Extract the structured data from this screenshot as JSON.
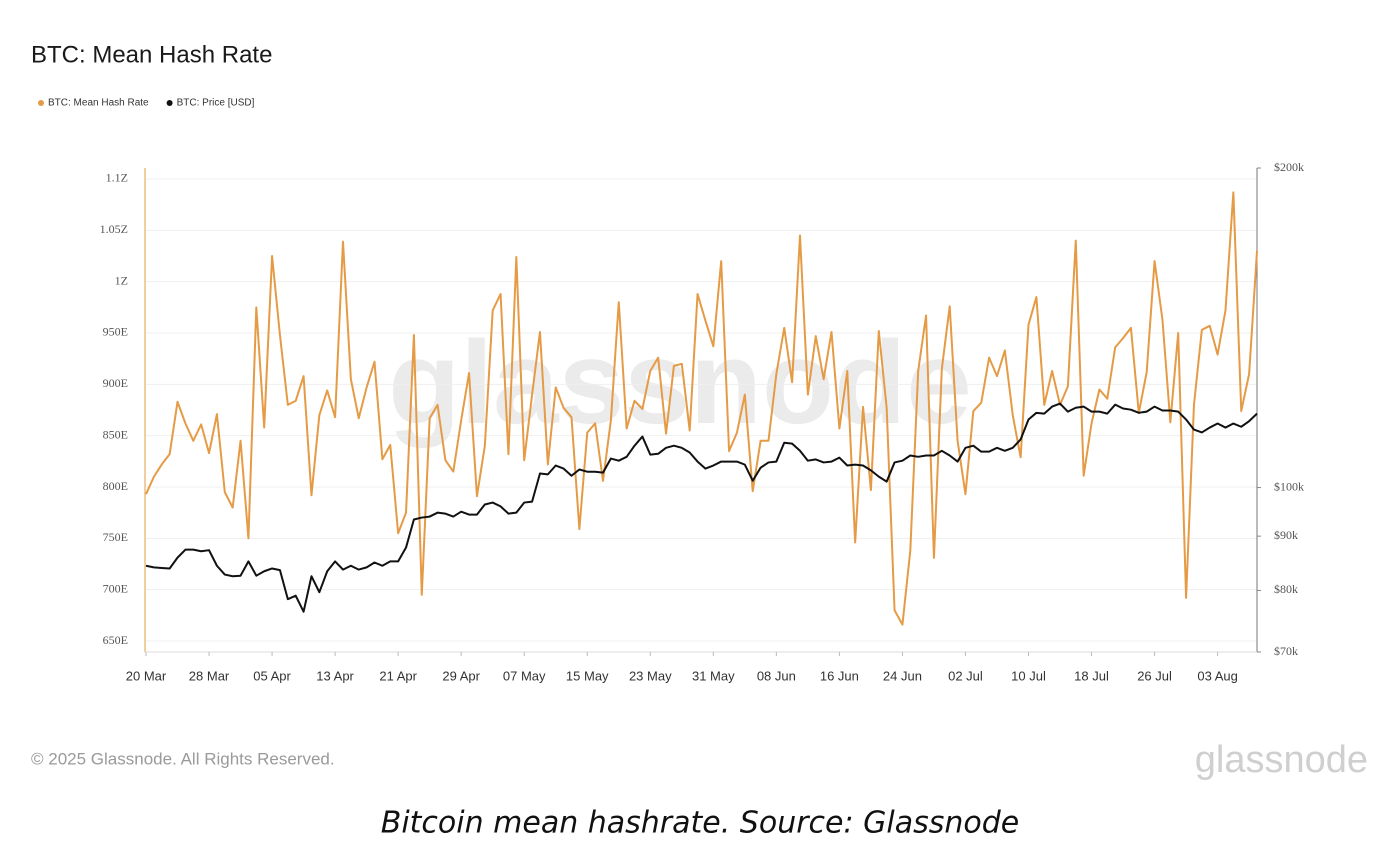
{
  "chart_data": {
    "type": "line",
    "title": "BTC: Mean Hash Rate",
    "categories": [
      "20 Mar",
      null,
      null,
      null,
      null,
      null,
      null,
      null,
      "28 Mar",
      null,
      null,
      null,
      null,
      null,
      null,
      null,
      "05 Apr",
      null,
      null,
      null,
      null,
      null,
      null,
      null,
      "13 Apr",
      null,
      null,
      null,
      null,
      null,
      null,
      null,
      "21 Apr",
      null,
      null,
      null,
      null,
      null,
      null,
      null,
      "29 Apr",
      null,
      null,
      null,
      null,
      null,
      null,
      null,
      "07 May",
      null,
      null,
      null,
      null,
      null,
      null,
      null,
      "15 May",
      null,
      null,
      null,
      null,
      null,
      null,
      null,
      "23 May",
      null,
      null,
      null,
      null,
      null,
      null,
      null,
      "31 May",
      null,
      null,
      null,
      null,
      null,
      null,
      null,
      "08 Jun",
      null,
      null,
      null,
      null,
      null,
      null,
      null,
      "16 Jun",
      null,
      null,
      null,
      null,
      null,
      null,
      null,
      "24 Jun",
      null,
      null,
      null,
      null,
      null,
      null,
      null,
      "02 Jul",
      null,
      null,
      null,
      null,
      null,
      null,
      null,
      "10 Jul",
      null,
      null,
      null,
      null,
      null,
      null,
      null,
      "18 Jul",
      null,
      null,
      null,
      null,
      null,
      null,
      null,
      "26 Jul",
      null,
      null,
      null,
      null,
      null,
      null,
      null,
      "03 Aug",
      null,
      null,
      null,
      null,
      null
    ],
    "series": [
      {
        "name": "BTC: Mean Hash Rate",
        "color": "#e59b45",
        "values": [
          793,
          810,
          822,
          832,
          883,
          862,
          845,
          861,
          833,
          871,
          795,
          780,
          845,
          750,
          975,
          858,
          1025,
          948,
          880,
          884,
          908,
          792,
          870,
          894,
          868,
          1039,
          905,
          867,
          897,
          922,
          827,
          841,
          755,
          775,
          948,
          695,
          867,
          880,
          826,
          815,
          865,
          911,
          791,
          840,
          972,
          988,
          832,
          1024,
          826,
          890,
          951,
          822,
          897,
          877,
          868,
          759,
          853,
          862,
          806,
          865,
          980,
          857,
          884,
          876,
          913,
          926,
          852,
          918,
          920,
          855,
          988,
          962,
          937,
          1020,
          835,
          853,
          890,
          796,
          845,
          845,
          910,
          955,
          902,
          1045,
          890,
          947,
          905,
          951,
          857,
          913,
          746,
          878,
          797,
          952,
          877,
          680,
          666,
          738,
          913,
          967,
          731,
          915,
          976,
          845,
          793,
          874,
          882,
          926,
          908,
          933,
          870,
          829,
          958,
          985,
          880,
          913,
          880,
          898,
          1040,
          811,
          862,
          895,
          886,
          936,
          945,
          955,
          872,
          912,
          1020,
          963,
          863,
          950,
          692,
          880,
          953,
          957,
          929,
          972,
          1087,
          874,
          910,
          1030
        ]
      },
      {
        "name": "BTC: Price [USD]",
        "color": "#111111",
        "axis": "y2",
        "values": [
          84400,
          84100,
          84000,
          83900,
          85900,
          87400,
          87400,
          87100,
          87300,
          84400,
          82800,
          82500,
          82600,
          85200,
          82600,
          83400,
          83900,
          83600,
          78500,
          79100,
          76400,
          82500,
          79700,
          83400,
          85200,
          83700,
          84400,
          83700,
          84100,
          85000,
          84400,
          85200,
          85200,
          87800,
          93300,
          93700,
          93900,
          94700,
          94500,
          93900,
          94900,
          94300,
          94300,
          96400,
          96800,
          96000,
          94500,
          94700,
          96800,
          97000,
          103100,
          102900,
          104900,
          104200,
          102600,
          104000,
          103500,
          103500,
          103300,
          106500,
          106000,
          106900,
          109500,
          111700,
          107400,
          107600,
          109000,
          109500,
          109000,
          107900,
          105800,
          104200,
          104900,
          105800,
          105800,
          105800,
          105100,
          101500,
          104400,
          105600,
          105800,
          110200,
          110000,
          108300,
          106000,
          106300,
          105600,
          105800,
          106700,
          104900,
          105100,
          104900,
          103800,
          102400,
          101300,
          105600,
          106000,
          107200,
          106900,
          107200,
          107200,
          108300,
          107200,
          105800,
          109000,
          109500,
          108100,
          108100,
          109000,
          108300,
          109000,
          111000,
          115900,
          117600,
          117400,
          119200,
          120000,
          117900,
          118900,
          119200,
          117900,
          117900,
          117400,
          119700,
          118700,
          118400,
          117600,
          117900,
          119200,
          118200,
          118200,
          117900,
          115900,
          113400,
          112700,
          113900,
          114900,
          113900,
          114900,
          114100,
          115500,
          117400
        ]
      }
    ],
    "ylim": [
      639.3,
      1110.7
    ],
    "yticks": [
      {
        "value": 650,
        "label": "650E"
      },
      {
        "value": 700,
        "label": "700E"
      },
      {
        "value": 750,
        "label": "750E"
      },
      {
        "value": 800,
        "label": "800E"
      },
      {
        "value": 850,
        "label": "850E"
      },
      {
        "value": 900,
        "label": "900E"
      },
      {
        "value": 950,
        "label": "950E"
      },
      {
        "value": 1000,
        "label": "1Z"
      },
      {
        "value": 1050,
        "label": "1.05Z"
      },
      {
        "value": 1100,
        "label": "1.1Z"
      }
    ],
    "y2lim": [
      70000,
      200000
    ],
    "y2scale": "log",
    "y2ticks": [
      {
        "value": 70000,
        "label": "$70k"
      },
      {
        "value": 80000,
        "label": "$80k"
      },
      {
        "value": 90000,
        "label": "$90k"
      },
      {
        "value": 100000,
        "label": "$100k"
      },
      {
        "value": 200000,
        "label": "$200k"
      }
    ],
    "grid": true,
    "legend": "top-left",
    "watermark": "glassnode"
  },
  "footer": {
    "copyright": "© 2025 Glassnode. All Rights Reserved.",
    "logo": "glassnode"
  },
  "caption": "Bitcoin mean hashrate. Source: Glassnode"
}
